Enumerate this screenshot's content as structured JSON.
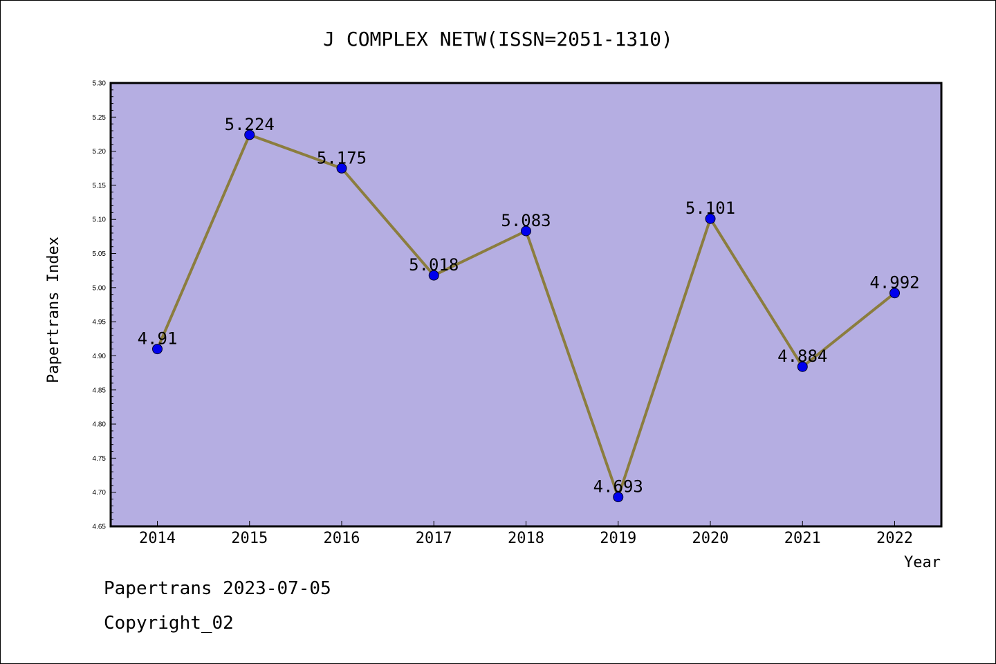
{
  "chart_data": {
    "type": "line",
    "title": "J COMPLEX NETW(ISSN=2051-1310)",
    "xlabel": "Year",
    "ylabel": "Papertrans Index",
    "categories": [
      "2014",
      "2015",
      "2016",
      "2017",
      "2018",
      "2019",
      "2020",
      "2021",
      "2022"
    ],
    "series": [
      {
        "values": [
          4.91,
          5.224,
          5.175,
          5.018,
          5.083,
          4.693,
          5.101,
          4.884,
          4.992
        ],
        "labels": [
          "4.91",
          "5.224",
          "5.175",
          "5.018",
          "5.083",
          "4.693",
          "5.101",
          "4.884",
          "4.992"
        ]
      }
    ],
    "ylim": [
      4.65,
      5.3
    ],
    "yticks": [
      "4.65",
      "4.70",
      "4.75",
      "4.80",
      "4.85",
      "4.90",
      "4.95",
      "5.00",
      "5.05",
      "5.10",
      "5.15",
      "5.20",
      "5.25",
      "5.30"
    ],
    "grid": false,
    "legend": "none",
    "colors": {
      "plot_background": "#b5aee2",
      "line": "#8b7d3e",
      "marker": "#0000ee"
    }
  },
  "footer": {
    "line1": "Papertrans 2023-07-05",
    "line2": "Copyright_02"
  }
}
